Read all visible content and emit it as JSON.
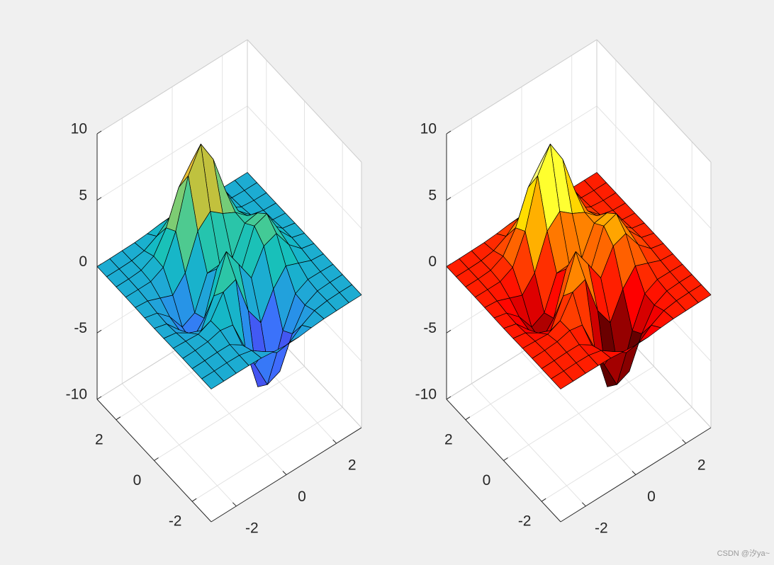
{
  "chart_data": [
    {
      "type": "surface",
      "grid": true,
      "edge_color": "#000000",
      "colormap": [
        "#3e26a8",
        "#4743e8",
        "#3f6bfd",
        "#2a8ded",
        "#1fa8d6",
        "#12bec0",
        "#36c99e",
        "#7dcc73",
        "#c3c13c",
        "#f9bd35",
        "#f9fb15"
      ],
      "xlim": [
        -3,
        3
      ],
      "ylim": [
        -3,
        3
      ],
      "zlim": [
        -10,
        10
      ],
      "xticks": [
        -2,
        0,
        2
      ],
      "yticks": [
        -2,
        0,
        2
      ],
      "zticks": [
        -10,
        -5,
        0,
        5,
        10
      ],
      "x": [
        -3,
        -2.5,
        -2,
        -1.5,
        -1,
        -0.5,
        0,
        0.5,
        1,
        1.5,
        2,
        2.5,
        3
      ],
      "y": [
        -3,
        -2.5,
        -2,
        -1.5,
        -1,
        -0.5,
        0,
        0.5,
        1,
        1.5,
        2,
        2.5,
        3
      ],
      "z": [
        [
          0,
          0,
          0,
          0,
          -0.03,
          -0.14,
          -0.24,
          -0.22,
          -0.11,
          -0.03,
          -0.01,
          0,
          0
        ],
        [
          0,
          0,
          0.02,
          0,
          -0.23,
          -0.91,
          -1.57,
          -1.41,
          -0.69,
          -0.18,
          -0.03,
          0,
          0
        ],
        [
          0,
          0.01,
          0.05,
          0.04,
          -0.59,
          -2.64,
          -4.75,
          -4.34,
          -2.1,
          -0.53,
          -0.06,
          0,
          0
        ],
        [
          0,
          0.01,
          0.08,
          0.33,
          0.15,
          -2.19,
          -5.68,
          -5.76,
          -2.63,
          -0.44,
          0.04,
          0.03,
          0
        ],
        [
          -0.01,
          -0.06,
          -0.13,
          0.3,
          1.86,
          2.22,
          -0.72,
          -2.22,
          -0.27,
          0.88,
          0.5,
          0.11,
          0.01
        ],
        [
          -0.03,
          -0.2,
          -0.8,
          -1.21,
          0.8,
          3.55,
          2,
          0.39,
          2.2,
          2.56,
          1.12,
          0.24,
          0.03
        ],
        [
          -0.04,
          -0.3,
          -1.33,
          -2.77,
          -1.65,
          1.48,
          0.98,
          0.38,
          2.94,
          3.27,
          1.41,
          0.3,
          0.03
        ],
        [
          -0.03,
          -0.25,
          -1.12,
          -2.49,
          -2,
          0.39,
          0.46,
          0.37,
          2.38,
          2.56,
          1.09,
          0.23,
          0.03
        ],
        [
          -0.01,
          -0.11,
          -0.48,
          -0.86,
          0.23,
          2.79,
          3.69,
          2.94,
          2.43,
          1.58,
          0.58,
          0.11,
          0.01
        ],
        [
          0,
          -0.02,
          -0.01,
          0.47,
          2.6,
          6.19,
          7.99,
          6.25,
          3.25,
          1.18,
          0.29,
          0.05,
          0
        ],
        [
          0,
          0.01,
          0.08,
          0.55,
          2.09,
          4.55,
          5.85,
          4.56,
          2.21,
          0.68,
          0.13,
          0.02,
          0
        ],
        [
          0,
          0,
          0.03,
          0.19,
          0.69,
          1.47,
          1.88,
          1.47,
          0.7,
          0.21,
          0.04,
          0,
          0
        ],
        [
          0,
          0,
          0.01,
          0.03,
          0.11,
          0.23,
          0.3,
          0.23,
          0.11,
          0.03,
          0.01,
          0,
          0
        ]
      ]
    },
    {
      "type": "surface",
      "grid": true,
      "edge_color": "#000000",
      "colormap": [
        "#0b0000",
        "#550000",
        "#aa0000",
        "#ff0000",
        "#ff5500",
        "#ffaa00",
        "#ffff00",
        "#ffff80",
        "#ffffff"
      ],
      "xlim": [
        -3,
        3
      ],
      "ylim": [
        -3,
        3
      ],
      "zlim": [
        -10,
        10
      ],
      "xticks": [
        -2,
        0,
        2
      ],
      "yticks": [
        -2,
        0,
        2
      ],
      "zticks": [
        -10,
        -5,
        0,
        5,
        10
      ],
      "x": [
        -3,
        -2.5,
        -2,
        -1.5,
        -1,
        -0.5,
        0,
        0.5,
        1,
        1.5,
        2,
        2.5,
        3
      ],
      "y": [
        -3,
        -2.5,
        -2,
        -1.5,
        -1,
        -0.5,
        0,
        0.5,
        1,
        1.5,
        2,
        2.5,
        3
      ],
      "z": [
        [
          0,
          0,
          0,
          0,
          -0.03,
          -0.14,
          -0.24,
          -0.22,
          -0.11,
          -0.03,
          -0.01,
          0,
          0
        ],
        [
          0,
          0,
          0.02,
          0,
          -0.23,
          -0.91,
          -1.57,
          -1.41,
          -0.69,
          -0.18,
          -0.03,
          0,
          0
        ],
        [
          0,
          0.01,
          0.05,
          0.04,
          -0.59,
          -2.64,
          -4.75,
          -4.34,
          -2.1,
          -0.53,
          -0.06,
          0,
          0
        ],
        [
          0,
          0.01,
          0.08,
          0.33,
          0.15,
          -2.19,
          -5.68,
          -5.76,
          -2.63,
          -0.44,
          0.04,
          0.03,
          0
        ],
        [
          -0.01,
          -0.06,
          -0.13,
          0.3,
          1.86,
          2.22,
          -0.72,
          -2.22,
          -0.27,
          0.88,
          0.5,
          0.11,
          0.01
        ],
        [
          -0.03,
          -0.2,
          -0.8,
          -1.21,
          0.8,
          3.55,
          2,
          0.39,
          2.2,
          2.56,
          1.12,
          0.24,
          0.03
        ],
        [
          -0.04,
          -0.3,
          -1.33,
          -2.77,
          -1.65,
          1.48,
          0.98,
          0.38,
          2.94,
          3.27,
          1.41,
          0.3,
          0.03
        ],
        [
          -0.03,
          -0.25,
          -1.12,
          -2.49,
          -2,
          0.39,
          0.46,
          0.37,
          2.38,
          2.56,
          1.09,
          0.23,
          0.03
        ],
        [
          -0.01,
          -0.11,
          -0.48,
          -0.86,
          0.23,
          2.79,
          3.69,
          2.94,
          2.43,
          1.58,
          0.58,
          0.11,
          0.01
        ],
        [
          0,
          -0.02,
          -0.01,
          0.47,
          2.6,
          6.19,
          7.99,
          6.25,
          3.25,
          1.18,
          0.29,
          0.05,
          0
        ],
        [
          0,
          0.01,
          0.08,
          0.55,
          2.09,
          4.55,
          5.85,
          4.56,
          2.21,
          0.68,
          0.13,
          0.02,
          0
        ],
        [
          0,
          0,
          0.03,
          0.19,
          0.69,
          1.47,
          1.88,
          1.47,
          0.7,
          0.21,
          0.04,
          0,
          0
        ],
        [
          0,
          0,
          0.01,
          0.03,
          0.11,
          0.23,
          0.3,
          0.23,
          0.11,
          0.03,
          0.01,
          0,
          0
        ]
      ]
    }
  ],
  "watermark": "CSDN @汐ya~"
}
